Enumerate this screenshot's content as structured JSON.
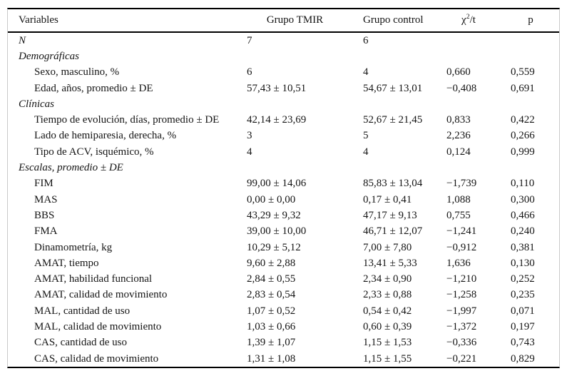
{
  "table": {
    "header": {
      "variables": "Variables",
      "tmir": "Grupo TMIR",
      "control": "Grupo control",
      "chi_base": "χ",
      "chi_sup": "2",
      "chi_rest": "/t",
      "p": "p"
    },
    "rows": [
      {
        "label": "N",
        "italic": true,
        "indent": false,
        "tmir": "7",
        "control": "6",
        "chi": "",
        "p": ""
      },
      {
        "label": "Demográficas",
        "italic": true,
        "indent": false,
        "tmir": "",
        "control": "",
        "chi": "",
        "p": ""
      },
      {
        "label": "Sexo, masculino, %",
        "italic": false,
        "indent": true,
        "tmir": "6",
        "control": "4",
        "chi": "0,660",
        "p": "0,559"
      },
      {
        "label": "Edad, años, promedio ± DE",
        "italic": false,
        "indent": true,
        "tmir": "57,43 ± 10,51",
        "control": "54,67 ± 13,01",
        "chi": "−0,408",
        "p": "0,691"
      },
      {
        "label": "Clínicas",
        "italic": true,
        "indent": false,
        "tmir": "",
        "control": "",
        "chi": "",
        "p": ""
      },
      {
        "label": "Tiempo de evolución, días, promedio ± DE",
        "italic": false,
        "indent": true,
        "tmir": "42,14 ± 23,69",
        "control": "52,67 ± 21,45",
        "chi": "0,833",
        "p": "0,422"
      },
      {
        "label": "Lado de hemiparesia, derecha, %",
        "italic": false,
        "indent": true,
        "tmir": "3",
        "control": "5",
        "chi": "2,236",
        "p": "0,266"
      },
      {
        "label": "Tipo de ACV, isquémico, %",
        "italic": false,
        "indent": true,
        "tmir": "4",
        "control": "4",
        "chi": "0,124",
        "p": "0,999"
      },
      {
        "label": "Escalas, promedio ± DE",
        "italic": true,
        "indent": false,
        "tmir": "",
        "control": "",
        "chi": "",
        "p": ""
      },
      {
        "label": "FIM",
        "italic": false,
        "indent": true,
        "tmir": "99,00 ± 14,06",
        "control": "85,83 ± 13,04",
        "chi": "−1,739",
        "p": "0,110"
      },
      {
        "label": "MAS",
        "italic": false,
        "indent": true,
        "tmir": "0,00 ± 0,00",
        "control": "0,17 ± 0,41",
        "chi": "1,088",
        "p": "0,300"
      },
      {
        "label": "BBS",
        "italic": false,
        "indent": true,
        "tmir": "43,29 ± 9,32",
        "control": "47,17 ± 9,13",
        "chi": "0,755",
        "p": "0,466"
      },
      {
        "label": "FMA",
        "italic": false,
        "indent": true,
        "tmir": "39,00 ± 10,00",
        "control": "46,71 ± 12,07",
        "chi": "−1,241",
        "p": "0,240"
      },
      {
        "label": "Dinamometría, kg",
        "italic": false,
        "indent": true,
        "tmir": "10,29 ± 5,12",
        "control": "7,00 ± 7,80",
        "chi": "−0,912",
        "p": "0,381"
      },
      {
        "label": "AMAT, tiempo",
        "italic": false,
        "indent": true,
        "tmir": "9,60 ± 2,88",
        "control": "13,41 ± 5,33",
        "chi": "1,636",
        "p": "0,130"
      },
      {
        "label": "AMAT, habilidad funcional",
        "italic": false,
        "indent": true,
        "tmir": "2,84 ± 0,55",
        "control": "2,34 ± 0,90",
        "chi": "−1,210",
        "p": "0,252"
      },
      {
        "label": "AMAT, calidad de movimiento",
        "italic": false,
        "indent": true,
        "tmir": "2,83 ± 0,54",
        "control": "2,33 ± 0,88",
        "chi": "−1,258",
        "p": "0,235"
      },
      {
        "label": "MAL, cantidad de uso",
        "italic": false,
        "indent": true,
        "tmir": "1,07 ± 0,52",
        "control": "0,54 ± 0,42",
        "chi": "−1,997",
        "p": "0,071"
      },
      {
        "label": "MAL, calidad de movimiento",
        "italic": false,
        "indent": true,
        "tmir": "1,03 ± 0,66",
        "control": "0,60 ± 0,39",
        "chi": "−1,372",
        "p": "0,197"
      },
      {
        "label": "CAS, cantidad de uso",
        "italic": false,
        "indent": true,
        "tmir": "1,39 ± 1,07",
        "control": "1,15 ± 1,53",
        "chi": "−0,336",
        "p": "0,743"
      },
      {
        "label": "CAS, calidad de movimiento",
        "italic": false,
        "indent": true,
        "tmir": "1,31 ± 1,08",
        "control": "1,15 ± 1,55",
        "chi": "−0,221",
        "p": "0,829"
      }
    ]
  }
}
